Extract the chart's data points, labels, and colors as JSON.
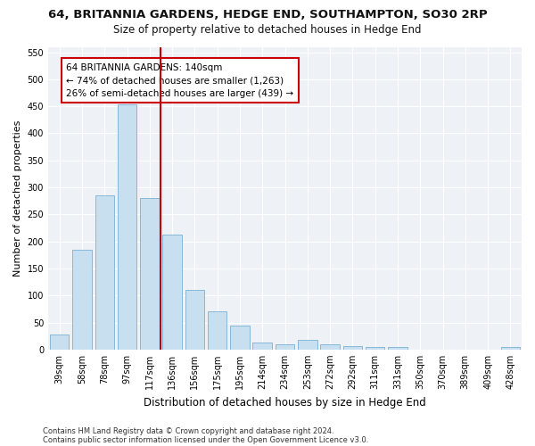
{
  "title1": "64, BRITANNIA GARDENS, HEDGE END, SOUTHAMPTON, SO30 2RP",
  "title2": "Size of property relative to detached houses in Hedge End",
  "xlabel": "Distribution of detached houses by size in Hedge End",
  "ylabel": "Number of detached properties",
  "categories": [
    "39sqm",
    "58sqm",
    "78sqm",
    "97sqm",
    "117sqm",
    "136sqm",
    "156sqm",
    "175sqm",
    "195sqm",
    "214sqm",
    "234sqm",
    "253sqm",
    "272sqm",
    "292sqm",
    "311sqm",
    "331sqm",
    "350sqm",
    "370sqm",
    "389sqm",
    "409sqm",
    "428sqm"
  ],
  "values": [
    28,
    185,
    285,
    453,
    280,
    212,
    110,
    70,
    44,
    13,
    10,
    18,
    10,
    6,
    4,
    5,
    0,
    0,
    0,
    0,
    5
  ],
  "bar_color": "#c8dff0",
  "bar_edgecolor": "#7ab0d4",
  "vline_color": "#cc0000",
  "annotation_text": "64 BRITANNIA GARDENS: 140sqm\n← 74% of detached houses are smaller (1,263)\n26% of semi-detached houses are larger (439) →",
  "annotation_box_color": "#ffffff",
  "annotation_box_edgecolor": "#cc0000",
  "ylim": [
    0,
    560
  ],
  "yticks": [
    0,
    50,
    100,
    150,
    200,
    250,
    300,
    350,
    400,
    450,
    500,
    550
  ],
  "footnote1": "Contains HM Land Registry data © Crown copyright and database right 2024.",
  "footnote2": "Contains public sector information licensed under the Open Government Licence v3.0.",
  "background_color": "#ffffff",
  "plot_background": "#eef2f7",
  "title1_fontsize": 9.5,
  "title2_fontsize": 8.5,
  "xlabel_fontsize": 8.5,
  "ylabel_fontsize": 8,
  "tick_fontsize": 7,
  "footnote_fontsize": 6,
  "annotation_fontsize": 7.5
}
